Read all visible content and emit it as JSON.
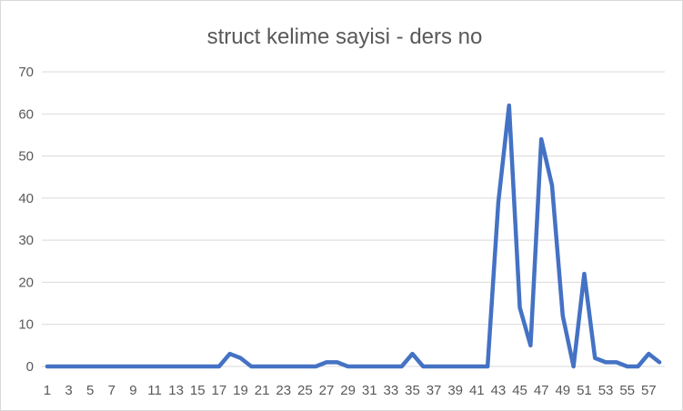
{
  "chart_data": {
    "type": "line",
    "title": "struct kelime sayisi - ders no",
    "xlabel": "",
    "ylabel": "",
    "ylim": [
      0,
      70
    ],
    "yticks": [
      0,
      10,
      20,
      30,
      40,
      50,
      60,
      70
    ],
    "grid": true,
    "legend": "none",
    "categories": [
      1,
      2,
      3,
      4,
      5,
      6,
      7,
      8,
      9,
      10,
      11,
      12,
      13,
      14,
      15,
      16,
      17,
      18,
      19,
      20,
      21,
      22,
      23,
      24,
      25,
      26,
      27,
      28,
      29,
      30,
      31,
      32,
      33,
      34,
      35,
      36,
      37,
      38,
      39,
      40,
      41,
      42,
      43,
      44,
      45,
      46,
      47,
      48,
      49,
      50,
      51,
      52,
      53,
      54,
      55,
      56,
      57,
      58
    ],
    "x_tick_labels": [
      "1",
      "3",
      "5",
      "7",
      "9",
      "11",
      "13",
      "15",
      "17",
      "19",
      "21",
      "23",
      "25",
      "27",
      "29",
      "31",
      "33",
      "35",
      "37",
      "39",
      "41",
      "43",
      "45",
      "47",
      "49",
      "51",
      "53",
      "55",
      "57"
    ],
    "series": [
      {
        "color": "#4472C4",
        "values": [
          0,
          0,
          0,
          0,
          0,
          0,
          0,
          0,
          0,
          0,
          0,
          0,
          0,
          0,
          0,
          0,
          0,
          3,
          2,
          0,
          0,
          0,
          0,
          0,
          0,
          0,
          1,
          1,
          0,
          0,
          0,
          0,
          0,
          0,
          3,
          0,
          0,
          0,
          0,
          0,
          0,
          0,
          39,
          62,
          14,
          5,
          54,
          43,
          12,
          0,
          22,
          2,
          1,
          1,
          0,
          0,
          3,
          1
        ]
      }
    ]
  }
}
